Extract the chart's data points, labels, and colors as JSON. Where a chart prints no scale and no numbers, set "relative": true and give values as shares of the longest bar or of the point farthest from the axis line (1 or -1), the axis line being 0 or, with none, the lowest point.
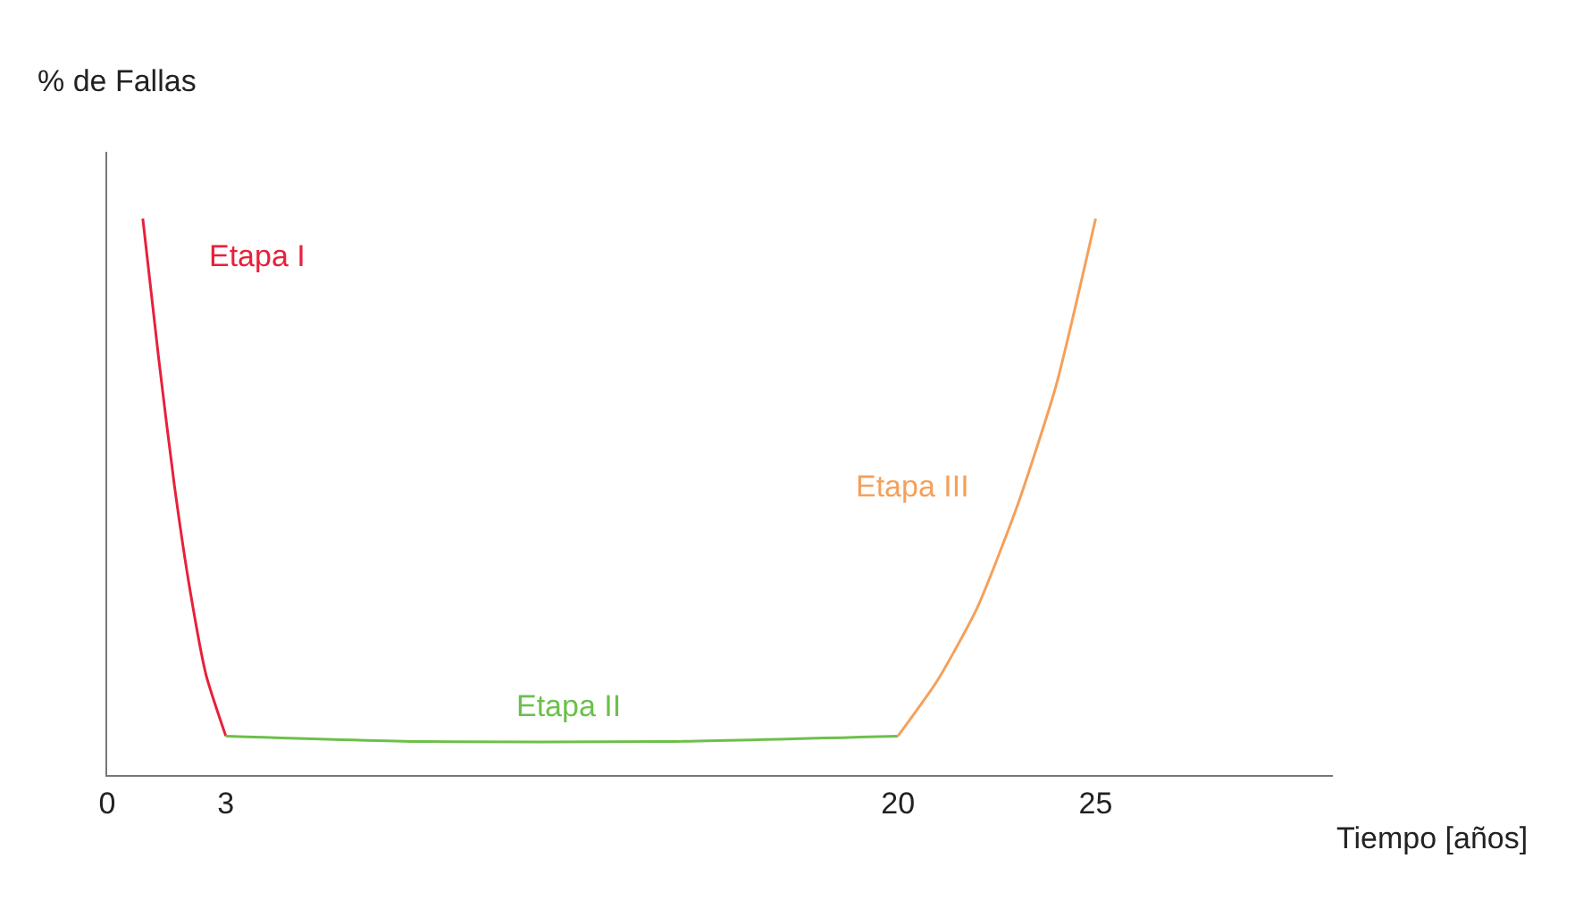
{
  "chart_data": {
    "type": "line",
    "relative": true,
    "xlabel": "Tiempo [años]",
    "ylabel": "% de Fallas",
    "xlim": [
      0,
      31
    ],
    "xticks": [
      0,
      3,
      20,
      25
    ],
    "legend": false,
    "marker": "none",
    "line_style": "solid",
    "series": [
      {
        "name": "Etapa I",
        "color": "#e8203a",
        "x": [
          0.9,
          1.3,
          1.7,
          2.1,
          2.5,
          3
        ],
        "values": [
          1,
          0.75,
          0.52,
          0.33,
          0.18,
          0.07
        ]
      },
      {
        "name": "Etapa II",
        "color": "#6cc04a",
        "x": [
          3,
          8,
          14,
          20
        ],
        "values": [
          0.07,
          0.06,
          0.06,
          0.07
        ]
      },
      {
        "name": "Etapa III",
        "color": "#f5a05a",
        "x": [
          20,
          21,
          22,
          23,
          24,
          25
        ],
        "values": [
          0.07,
          0.17,
          0.3,
          0.48,
          0.7,
          1
        ]
      }
    ]
  }
}
